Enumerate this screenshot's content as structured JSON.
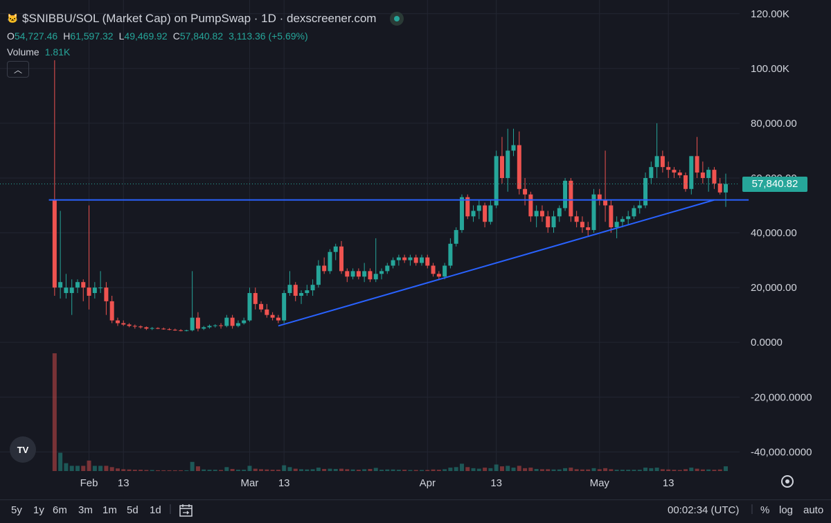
{
  "header": {
    "title": "$SNIBBU/SOL (Market Cap) on PumpSwap · 1D · dexscreener.com",
    "logo_icon": "snibbu-token-icon",
    "ohlc": {
      "o_label": "O",
      "o_value": "54,727.46",
      "h_label": "H",
      "h_value": "61,597.32",
      "l_label": "L",
      "l_value": "49,469.92",
      "c_label": "C",
      "c_value": "57,840.82",
      "change": "3,113.36 (+5.69%)"
    },
    "volume_label": "Volume",
    "volume_value": "1.81K",
    "collapse_icon": "chevron-up-icon"
  },
  "price_badge": "57,840.82",
  "toolbar": {
    "ranges": [
      "5y",
      "1y",
      "6m",
      "3m",
      "1m",
      "5d",
      "1d"
    ],
    "calendar_icon": "calendar-icon",
    "time": "00:02:34 (UTC)",
    "percent": "%",
    "log": "log",
    "auto": "auto"
  },
  "tv_logo": "TV",
  "colors": {
    "up": "#26a69a",
    "down": "#ef5350",
    "trendline": "#2962ff",
    "background": "#161821",
    "grid": "#232632"
  },
  "chart_data": {
    "type": "candlestick",
    "title": "$SNIBBU/SOL (Market Cap) on PumpSwap · 1D · dexscreener.com",
    "x_ticks": [
      {
        "label": "Feb",
        "day": 7
      },
      {
        "label": "13",
        "day": 13
      },
      {
        "label": "Mar",
        "day": 35
      },
      {
        "label": "13",
        "day": 41
      },
      {
        "label": "Apr",
        "day": 66
      },
      {
        "label": "13",
        "day": 78
      },
      {
        "label": "May",
        "day": 96
      },
      {
        "label": "13",
        "day": 108
      }
    ],
    "y_ticks": [
      {
        "label": "120.00K",
        "value": 120000
      },
      {
        "label": "100.00K",
        "value": 100000
      },
      {
        "label": "80,000.00",
        "value": 80000
      },
      {
        "label": "60,000.00",
        "value": 60000
      },
      {
        "label": "40,000.00",
        "value": 40000
      },
      {
        "label": "20,000.00",
        "value": 20000
      },
      {
        "label": "0.0000",
        "value": 0
      },
      {
        "label": "-20,000.0000",
        "value": -20000
      },
      {
        "label": "-40,000.0000",
        "value": -40000
      }
    ],
    "ylim": [
      -47000,
      125000
    ],
    "x_range_days": [
      -2,
      118
    ],
    "volume_max": 45000,
    "candles": [
      [
        1,
        52000,
        103000,
        17000,
        20000,
        45000
      ],
      [
        2,
        20000,
        48000,
        16000,
        22000,
        7000
      ],
      [
        3,
        18000,
        25000,
        16000,
        20000,
        3000
      ],
      [
        4,
        18000,
        23000,
        10000,
        20000,
        2000
      ],
      [
        5,
        20000,
        23000,
        18000,
        22000,
        2000
      ],
      [
        6,
        22000,
        23000,
        15000,
        20000,
        2000
      ],
      [
        7,
        20000,
        50000,
        12000,
        17000,
        4000
      ],
      [
        8,
        18000,
        22000,
        16000,
        20000,
        2000
      ],
      [
        9,
        20000,
        26000,
        18000,
        20000,
        2000
      ],
      [
        10,
        20000,
        22000,
        10000,
        15000,
        2000
      ],
      [
        11,
        15000,
        17000,
        7000,
        8000,
        1500
      ],
      [
        12,
        8000,
        9000,
        6000,
        7000,
        1000
      ],
      [
        13,
        7000,
        8000,
        6000,
        6500,
        700
      ],
      [
        14,
        6500,
        7000,
        5500,
        6000,
        600
      ],
      [
        15,
        6000,
        6500,
        5000,
        5800,
        500
      ],
      [
        16,
        5800,
        6200,
        5000,
        5500,
        500
      ],
      [
        17,
        5500,
        5800,
        4500,
        5000,
        400
      ],
      [
        18,
        5000,
        5600,
        4500,
        5200,
        400
      ],
      [
        19,
        5200,
        5500,
        4800,
        5000,
        300
      ],
      [
        20,
        5000,
        5400,
        4600,
        4800,
        300
      ],
      [
        21,
        4800,
        5200,
        4400,
        4600,
        300
      ],
      [
        22,
        4600,
        5000,
        4200,
        4400,
        300
      ],
      [
        23,
        4400,
        4800,
        4000,
        4200,
        300
      ],
      [
        24,
        4200,
        4600,
        4000,
        4400,
        300
      ],
      [
        25,
        4400,
        26000,
        4000,
        9000,
        3500
      ],
      [
        26,
        9000,
        11000,
        4000,
        5000,
        1800
      ],
      [
        27,
        5000,
        6000,
        4500,
        5500,
        600
      ],
      [
        28,
        5500,
        6500,
        5000,
        6000,
        500
      ],
      [
        29,
        6000,
        6600,
        5400,
        6200,
        500
      ],
      [
        30,
        6200,
        7000,
        5000,
        6000,
        400
      ],
      [
        31,
        6000,
        10000,
        5500,
        9000,
        1500
      ],
      [
        32,
        9000,
        10000,
        5000,
        6000,
        800
      ],
      [
        33,
        6000,
        8000,
        5500,
        7000,
        500
      ],
      [
        34,
        7000,
        9000,
        6500,
        8000,
        500
      ],
      [
        35,
        8000,
        20000,
        7500,
        18000,
        2000
      ],
      [
        36,
        18000,
        20000,
        12000,
        14000,
        900
      ],
      [
        37,
        14000,
        15000,
        11000,
        12000,
        700
      ],
      [
        38,
        12000,
        14000,
        9000,
        10000,
        600
      ],
      [
        39,
        10000,
        11000,
        8000,
        9000,
        500
      ],
      [
        40,
        9000,
        10000,
        7000,
        8000,
        500
      ],
      [
        41,
        8000,
        19000,
        7000,
        18000,
        2200
      ],
      [
        42,
        18000,
        26000,
        17000,
        21000,
        1500
      ],
      [
        43,
        21000,
        22000,
        15000,
        17000,
        900
      ],
      [
        44,
        17000,
        19000,
        14000,
        18000,
        700
      ],
      [
        45,
        18000,
        21000,
        17000,
        19000,
        600
      ],
      [
        46,
        19000,
        23000,
        17000,
        21000,
        700
      ],
      [
        47,
        21000,
        30000,
        20000,
        28000,
        1300
      ],
      [
        48,
        28000,
        31000,
        25000,
        26000,
        800
      ],
      [
        49,
        26000,
        34000,
        25000,
        33000,
        900
      ],
      [
        50,
        33000,
        36000,
        30000,
        35000,
        800
      ],
      [
        51,
        35000,
        37000,
        25000,
        26000,
        900
      ],
      [
        52,
        26000,
        27000,
        22000,
        24000,
        700
      ],
      [
        53,
        24000,
        27000,
        23000,
        26000,
        600
      ],
      [
        54,
        26000,
        27000,
        23000,
        24000,
        500
      ],
      [
        55,
        24000,
        29000,
        22000,
        26000,
        700
      ],
      [
        56,
        26000,
        27000,
        22000,
        23000,
        800
      ],
      [
        57,
        23000,
        38000,
        22000,
        25000,
        1200
      ],
      [
        58,
        25000,
        27000,
        23000,
        26000,
        500
      ],
      [
        59,
        26000,
        29000,
        25000,
        28000,
        600
      ],
      [
        60,
        28000,
        31000,
        27000,
        30000,
        600
      ],
      [
        61,
        30000,
        32000,
        28000,
        31000,
        500
      ],
      [
        62,
        31000,
        32000,
        29000,
        30000,
        500
      ],
      [
        63,
        30000,
        32000,
        28000,
        31000,
        400
      ],
      [
        64,
        31000,
        32000,
        28000,
        29000,
        400
      ],
      [
        65,
        29000,
        32000,
        28000,
        31000,
        400
      ],
      [
        66,
        31000,
        32000,
        27000,
        28000,
        400
      ],
      [
        67,
        28000,
        29000,
        24000,
        25000,
        600
      ],
      [
        68,
        25000,
        26000,
        23000,
        24000,
        500
      ],
      [
        69,
        24000,
        29000,
        23000,
        28000,
        700
      ],
      [
        70,
        28000,
        38000,
        27000,
        36000,
        1300
      ],
      [
        71,
        36000,
        42000,
        35000,
        41000,
        1500
      ],
      [
        72,
        41000,
        54000,
        40000,
        53000,
        2800
      ],
      [
        73,
        53000,
        54000,
        45000,
        46000,
        1500
      ],
      [
        74,
        46000,
        50000,
        44000,
        48000,
        1100
      ],
      [
        75,
        48000,
        52000,
        45000,
        50000,
        900
      ],
      [
        76,
        50000,
        51000,
        42000,
        44000,
        1300
      ],
      [
        77,
        44000,
        52000,
        43000,
        50000,
        1100
      ],
      [
        78,
        50000,
        70000,
        49000,
        68000,
        2500
      ],
      [
        79,
        68000,
        75000,
        58000,
        60000,
        1800
      ],
      [
        80,
        60000,
        78000,
        55000,
        70000,
        2000
      ],
      [
        81,
        70000,
        78000,
        68000,
        72000,
        1300
      ],
      [
        82,
        72000,
        77000,
        54000,
        56000,
        2000
      ],
      [
        83,
        56000,
        60000,
        50000,
        54000,
        1100
      ],
      [
        84,
        54000,
        55000,
        44000,
        46000,
        1300
      ],
      [
        85,
        46000,
        50000,
        42000,
        48000,
        800
      ],
      [
        86,
        48000,
        50000,
        44000,
        46000,
        700
      ],
      [
        87,
        46000,
        48000,
        40000,
        42000,
        700
      ],
      [
        88,
        42000,
        48000,
        40000,
        46000,
        600
      ],
      [
        89,
        46000,
        50000,
        44000,
        49000,
        600
      ],
      [
        90,
        49000,
        60000,
        48000,
        59000,
        1100
      ],
      [
        91,
        59000,
        60000,
        44000,
        46000,
        1300
      ],
      [
        92,
        46000,
        48000,
        42000,
        44000,
        700
      ],
      [
        93,
        44000,
        46000,
        40000,
        42000,
        600
      ],
      [
        94,
        42000,
        44000,
        39000,
        41000,
        600
      ],
      [
        95,
        41000,
        56000,
        40000,
        54000,
        1100
      ],
      [
        96,
        54000,
        56000,
        50000,
        52000,
        700
      ],
      [
        97,
        52000,
        70000,
        44000,
        50000,
        1100
      ],
      [
        98,
        50000,
        52000,
        40000,
        42000,
        700
      ],
      [
        99,
        42000,
        46000,
        38000,
        44000,
        500
      ],
      [
        100,
        44000,
        46000,
        42000,
        45000,
        500
      ],
      [
        101,
        45000,
        48000,
        43000,
        46000,
        500
      ],
      [
        102,
        46000,
        50000,
        45000,
        49000,
        500
      ],
      [
        103,
        49000,
        52000,
        47000,
        50000,
        500
      ],
      [
        104,
        50000,
        62000,
        49000,
        60000,
        1300
      ],
      [
        105,
        60000,
        66000,
        58000,
        64000,
        1100
      ],
      [
        106,
        64000,
        80000,
        60000,
        68000,
        1300
      ],
      [
        107,
        68000,
        70000,
        62000,
        64000,
        700
      ],
      [
        108,
        64000,
        66000,
        60000,
        63000,
        600
      ],
      [
        109,
        63000,
        64000,
        60000,
        62000,
        500
      ],
      [
        110,
        62000,
        63000,
        60000,
        61000,
        400
      ],
      [
        111,
        61000,
        62000,
        55000,
        56000,
        700
      ],
      [
        112,
        56000,
        68000,
        54000,
        68000,
        1300
      ],
      [
        113,
        68000,
        75000,
        60000,
        62000,
        900
      ],
      [
        114,
        62000,
        66000,
        58000,
        60000,
        600
      ],
      [
        115,
        60000,
        64000,
        55000,
        63000,
        600
      ],
      [
        116,
        63000,
        64000,
        56000,
        58000,
        500
      ],
      [
        117,
        58000,
        60000,
        54000,
        54727,
        600
      ],
      [
        118,
        54727,
        61597,
        49470,
        57841,
        1810
      ]
    ],
    "trendlines": [
      {
        "from": [
          0,
          52000
        ],
        "to": [
          122,
          52000
        ]
      },
      {
        "from": [
          40,
          6000
        ],
        "to": [
          116,
          52000
        ]
      }
    ],
    "last_price": 57840.82
  }
}
